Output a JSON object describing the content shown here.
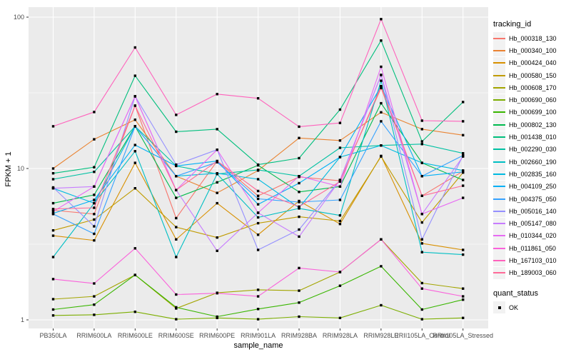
{
  "chart_data": {
    "type": "line",
    "title": "",
    "xlabel": "sample_name",
    "ylabel": "FPKM + 1",
    "y_scale": "log10",
    "ylim": [
      0.9,
      110
    ],
    "y_ticks": [
      "1",
      "10",
      "100"
    ],
    "y_tick_values": [
      1,
      10,
      100
    ],
    "y_minor_values": [
      3.1623,
      31.623
    ],
    "grid": true,
    "panel_bg": "#EBEBEB",
    "grid_color": "#FFFFFF",
    "tick_label_color": "#4D4D4D",
    "legend_position": "right",
    "categories": [
      "PB350LA",
      "RRIM600LA",
      "RRIM600LE",
      "RRIM600SE",
      "RRIM600PE",
      "RRIM901LA",
      "RRIM928BA",
      "RRIM928LA",
      "RRIM928LE",
      "RRII105LA_Control",
      "RRII105LA_Stressed"
    ],
    "series": [
      {
        "name": "Hb_000318_130",
        "color": "#F8766D",
        "values": [
          5.3,
          5.0,
          26,
          4.7,
          11.2,
          6.6,
          8.8,
          8.3,
          34,
          6.6,
          9.6
        ]
      },
      {
        "name": "Hb_000340_100",
        "color": "#EA8331",
        "values": [
          10.0,
          15.6,
          21,
          8.9,
          6.9,
          9.7,
          15.9,
          15.3,
          23.5,
          18.2,
          16.6
        ]
      },
      {
        "name": "Hb_000424_040",
        "color": "#D89000",
        "values": [
          3.6,
          3.35,
          10.9,
          3.4,
          5.9,
          3.65,
          6.1,
          4.3,
          12.1,
          3.2,
          2.9
        ]
      },
      {
        "name": "Hb_000580_150",
        "color": "#C09B00",
        "values": [
          3.9,
          4.6,
          7.4,
          4.1,
          3.5,
          4.35,
          4.8,
          4.5,
          12.0,
          4.4,
          9.4
        ]
      },
      {
        "name": "Hb_000608_170",
        "color": "#A3A500",
        "values": [
          1.37,
          1.43,
          1.98,
          1.19,
          1.51,
          1.58,
          1.56,
          2.07,
          3.4,
          1.75,
          1.61
        ]
      },
      {
        "name": "Hb_000690_060",
        "color": "#7CAE00",
        "values": [
          1.07,
          1.08,
          1.13,
          1.01,
          1.03,
          1.01,
          1.05,
          1.03,
          1.25,
          1.01,
          1.03
        ]
      },
      {
        "name": "Hb_000699_100",
        "color": "#39B600",
        "values": [
          1.17,
          1.26,
          1.98,
          1.21,
          1.05,
          1.18,
          1.3,
          1.68,
          2.26,
          1.17,
          1.36
        ]
      },
      {
        "name": "Hb_000802_130",
        "color": "#00BB4E",
        "values": [
          5.9,
          6.7,
          19.0,
          6.4,
          8.1,
          10.5,
          7.0,
          7.6,
          27,
          10.9,
          8.4
        ]
      },
      {
        "name": "Hb_001438_010",
        "color": "#00BF7D",
        "values": [
          9.3,
          10.2,
          41,
          17.5,
          18.2,
          10.6,
          11.7,
          24.5,
          70,
          15.1,
          27.5
        ]
      },
      {
        "name": "Hb_002290_030",
        "color": "#00C1A3",
        "values": [
          8.5,
          9.5,
          19,
          10.4,
          9.2,
          9.8,
          8.9,
          13.7,
          14.2,
          14.5,
          12.6
        ]
      },
      {
        "name": "Hb_002660_190",
        "color": "#00BFC4",
        "values": [
          2.6,
          5.9,
          13,
          2.6,
          9.2,
          4.75,
          5.45,
          4.9,
          38,
          2.8,
          2.7
        ]
      },
      {
        "name": "Hb_002835_160",
        "color": "#00BAE0",
        "values": [
          7.4,
          5.9,
          19,
          8.9,
          9.3,
          8.5,
          5.5,
          11.9,
          14.2,
          10.9,
          9.7
        ]
      },
      {
        "name": "Hb_004109_250",
        "color": "#00B0F6",
        "values": [
          5.05,
          6.2,
          14.3,
          10.4,
          11.2,
          5.8,
          8.0,
          11.9,
          35,
          8.9,
          9.5
        ]
      },
      {
        "name": "Hb_004375_050",
        "color": "#35A2FF",
        "values": [
          5.0,
          3.7,
          19,
          8.9,
          11.0,
          6.3,
          6.0,
          6.2,
          20.5,
          8.9,
          12.2
        ]
      },
      {
        "name": "Hb_005016_140",
        "color": "#9590FF",
        "values": [
          7.5,
          4.15,
          30,
          10.6,
          13.3,
          2.9,
          3.95,
          8.4,
          41.5,
          3.4,
          12.2
        ]
      },
      {
        "name": "Hb_005147_080",
        "color": "#C77CFF",
        "values": [
          7.4,
          7.6,
          30,
          7.2,
          2.86,
          5.1,
          3.55,
          8.4,
          41.5,
          5.0,
          12.0
        ]
      },
      {
        "name": "Hb_010344_020",
        "color": "#E76BF3",
        "values": [
          5.2,
          7.6,
          30,
          7.2,
          13.3,
          5.1,
          8.9,
          7.6,
          47,
          5.0,
          6.4
        ]
      },
      {
        "name": "Hb_011861_050",
        "color": "#FA62DB",
        "values": [
          1.86,
          1.74,
          2.97,
          1.47,
          1.5,
          1.43,
          2.2,
          2.07,
          3.4,
          1.61,
          1.43
        ]
      },
      {
        "name": "Hb_167103_010",
        "color": "#FF62BC",
        "values": [
          19,
          23.6,
          63,
          22.6,
          31,
          29.1,
          18.9,
          20,
          97,
          20.7,
          20.5
        ]
      },
      {
        "name": "Hb_189003_060",
        "color": "#FF6A98",
        "values": [
          5.4,
          5.5,
          26,
          7.2,
          11.2,
          7.1,
          5.6,
          8.2,
          35,
          6.6,
          7.7
        ]
      }
    ],
    "marker": {
      "shape": "square",
      "color": "#000000",
      "size": 3.4
    }
  },
  "legend": {
    "tracking_title": "tracking_id",
    "quant_title": "quant_status",
    "quant_items": [
      {
        "label": "OK"
      }
    ]
  }
}
